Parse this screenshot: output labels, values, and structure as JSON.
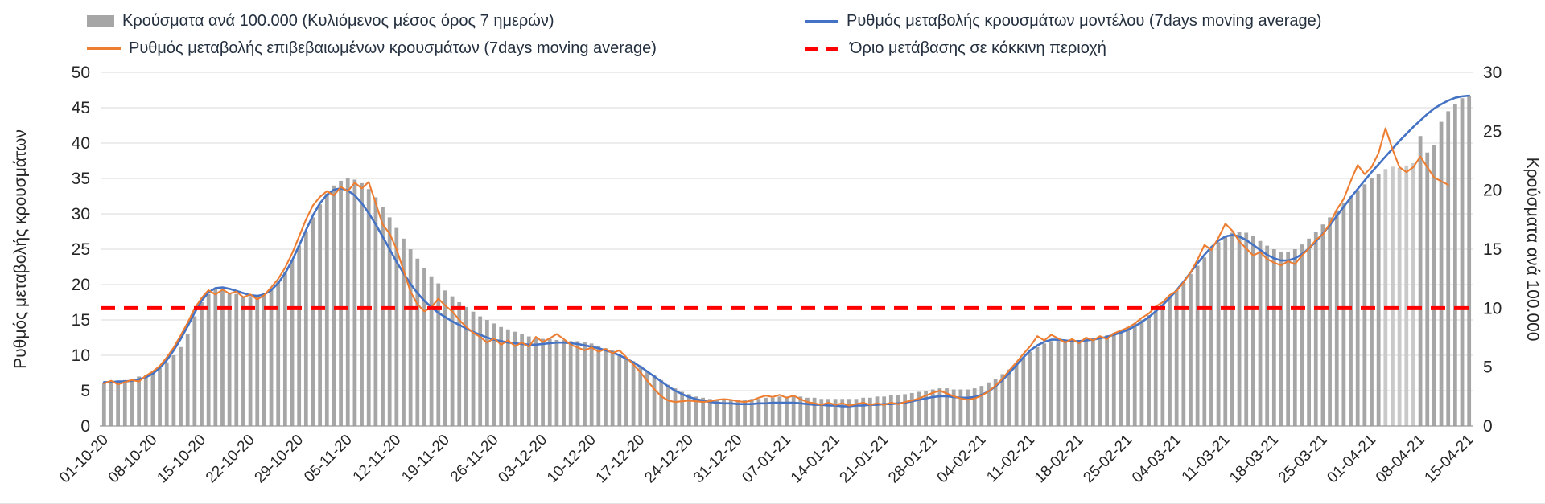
{
  "legend": {
    "bars": "Κρούσματα ανά 100.000 (Κυλιόμενος μέσος όρος 7 ημερών)",
    "model": "Ρυθμός μεταβολής κρουσμάτων μοντέλου (7days moving average)",
    "confirmed": "Ρυθμός μεταβολής επιβεβαιωμένων κρουσμάτων (7days moving average)",
    "threshold": "Όριο μετάβασης σε κόκκινη περιοχή"
  },
  "axes": {
    "left_title": "Ρυθμός μεταβολής κρουσμάτων",
    "right_title": "Κρούσματα ανά 100.000",
    "left_ticks": [
      0,
      5,
      10,
      15,
      20,
      25,
      30,
      35,
      40,
      45,
      50
    ],
    "right_ticks": [
      0,
      5,
      10,
      15,
      20,
      25,
      30
    ]
  },
  "colors": {
    "bar": "#a6a6a6",
    "bar_light": "#c9c9c9",
    "model_line": "#4472c4",
    "confirmed_line": "#ed7d31",
    "threshold": "#ff0000",
    "grid": "#d9d9d9",
    "axis_line": "#9a9a9a",
    "axis_text": "#262626",
    "legend_text": "#24303f"
  },
  "chart_data": {
    "type": "bar+line combo, dual axis",
    "title": "",
    "legend_position": "top",
    "grid": "horizontal",
    "n_points": 197,
    "x_tick_every": 7,
    "x_tick_labels": [
      "01-10-20",
      "08-10-20",
      "15-10-20",
      "22-10-20",
      "29-10-20",
      "05-11-20",
      "12-11-20",
      "19-11-20",
      "26-11-20",
      "03-12-20",
      "10-12-20",
      "17-12-20",
      "24-12-20",
      "31-12-20",
      "07-01-21",
      "14-01-21",
      "21-01-21",
      "28-01-21",
      "04-02-21",
      "11-02-21",
      "18-02-21",
      "25-02-21",
      "04-03-21",
      "11-03-21",
      "18-03-21",
      "25-03-21",
      "01-04-21",
      "08-04-21",
      "15-04-21"
    ],
    "left_axis": {
      "min": 0,
      "max": 50,
      "tick_step": 5,
      "title": "Ρυθμός μεταβολής κρουσμάτων"
    },
    "right_axis": {
      "min": 0,
      "max": 30,
      "tick_step": 5,
      "title": "Κρούσματα ανά 100.000"
    },
    "threshold": {
      "label": "Όριο μετάβασης σε κόκκινη περιοχή",
      "value": 10,
      "axis": "right",
      "left_axis_equivalent": 16.7
    },
    "series": [
      {
        "name": "Κρούσματα ανά 100.000 (Κυλιόμενος μέσος όρος 7 ημερών)",
        "type": "bar",
        "axis": "right",
        "light_indices": [
          184,
          185,
          186,
          187,
          188
        ],
        "values": [
          3.7,
          3.7,
          3.8,
          3.9,
          4.0,
          4.2,
          4.3,
          4.5,
          4.9,
          5.4,
          6.0,
          6.7,
          7.8,
          9.3,
          10.5,
          11.2,
          11.6,
          11.5,
          11.3,
          11.2,
          11.0,
          10.9,
          11.0,
          11.3,
          11.7,
          12.3,
          13.1,
          14.1,
          15.3,
          16.5,
          17.7,
          18.8,
          19.7,
          20.4,
          20.8,
          21.0,
          20.9,
          20.6,
          20.1,
          19.4,
          18.6,
          17.7,
          16.8,
          15.9,
          15.0,
          14.2,
          13.4,
          12.7,
          12.1,
          11.5,
          11.0,
          10.5,
          10.1,
          9.7,
          9.3,
          9.0,
          8.7,
          8.4,
          8.2,
          8.0,
          7.8,
          7.6,
          7.5,
          7.4,
          7.4,
          7.3,
          7.3,
          7.2,
          7.2,
          7.1,
          7.0,
          6.8,
          6.6,
          6.4,
          6.1,
          5.8,
          5.5,
          5.1,
          4.7,
          4.3,
          3.9,
          3.5,
          3.2,
          2.9,
          2.7,
          2.5,
          2.4,
          2.3,
          2.2,
          2.2,
          2.2,
          2.2,
          2.2,
          2.3,
          2.3,
          2.4,
          2.4,
          2.5,
          2.5,
          2.5,
          2.5,
          2.4,
          2.4,
          2.3,
          2.3,
          2.3,
          2.3,
          2.3,
          2.3,
          2.4,
          2.4,
          2.5,
          2.5,
          2.6,
          2.6,
          2.7,
          2.8,
          2.9,
          3.0,
          3.1,
          3.2,
          3.2,
          3.1,
          3.1,
          3.1,
          3.2,
          3.4,
          3.7,
          4.0,
          4.4,
          4.8,
          5.3,
          5.8,
          6.3,
          6.7,
          7.0,
          7.2,
          7.3,
          7.3,
          7.3,
          7.3,
          7.4,
          7.5,
          7.6,
          7.7,
          7.9,
          8.1,
          8.4,
          8.7,
          9.0,
          9.4,
          9.8,
          10.3,
          10.9,
          11.5,
          12.2,
          12.9,
          13.6,
          14.3,
          15.0,
          15.6,
          16.1,
          16.4,
          16.5,
          16.4,
          16.1,
          15.7,
          15.3,
          15.0,
          14.8,
          14.8,
          15.0,
          15.4,
          15.9,
          16.5,
          17.1,
          17.7,
          18.3,
          18.9,
          19.5,
          20.0,
          20.5,
          21.0,
          21.4,
          21.8,
          22.0,
          21.9,
          22.1,
          22.3,
          24.6,
          23.2,
          23.8,
          25.8,
          26.7,
          27.3,
          27.8,
          28.0
        ]
      },
      {
        "name": "Ρυθμός μεταβολής κρουσμάτων μοντέλου (7days moving average)",
        "type": "line",
        "axis": "left",
        "values": [
          6.2,
          6.2,
          6.3,
          6.3,
          6.4,
          6.6,
          6.9,
          7.4,
          8.2,
          9.3,
          10.7,
          12.3,
          14.1,
          16.0,
          17.7,
          18.9,
          19.5,
          19.6,
          19.4,
          19.1,
          18.8,
          18.5,
          18.4,
          18.6,
          19.2,
          20.2,
          21.6,
          23.4,
          25.5,
          27.7,
          29.8,
          31.5,
          32.7,
          33.4,
          33.6,
          33.3,
          32.6,
          31.5,
          30.1,
          28.5,
          26.8,
          25.0,
          23.2,
          21.6,
          20.1,
          18.8,
          17.7,
          16.8,
          16.0,
          15.4,
          14.8,
          14.3,
          13.8,
          13.3,
          12.9,
          12.5,
          12.2,
          12.0,
          11.8,
          11.7,
          11.6,
          11.5,
          11.5,
          11.6,
          11.7,
          11.8,
          11.8,
          11.7,
          11.6,
          11.4,
          11.2,
          11.0,
          10.7,
          10.4,
          10.0,
          9.5,
          9.0,
          8.4,
          7.7,
          7.0,
          6.3,
          5.6,
          5.0,
          4.5,
          4.1,
          3.8,
          3.6,
          3.4,
          3.3,
          3.2,
          3.2,
          3.1,
          3.1,
          3.1,
          3.2,
          3.2,
          3.3,
          3.3,
          3.3,
          3.3,
          3.2,
          3.1,
          3.0,
          3.0,
          2.9,
          2.9,
          2.8,
          2.8,
          2.9,
          2.9,
          3.0,
          3.0,
          3.1,
          3.1,
          3.2,
          3.3,
          3.5,
          3.7,
          3.9,
          4.1,
          4.2,
          4.2,
          4.1,
          4.0,
          4.0,
          4.1,
          4.4,
          4.9,
          5.6,
          6.5,
          7.5,
          8.6,
          9.7,
          10.7,
          11.4,
          11.9,
          12.2,
          12.2,
          12.1,
          12.0,
          12.0,
          12.1,
          12.2,
          12.4,
          12.6,
          12.9,
          13.2,
          13.6,
          14.1,
          14.7,
          15.4,
          16.2,
          17.1,
          18.1,
          19.2,
          20.4,
          21.7,
          23.0,
          24.2,
          25.3,
          26.2,
          26.8,
          27.0,
          26.8,
          26.3,
          25.6,
          24.9,
          24.2,
          23.7,
          23.4,
          23.4,
          23.7,
          24.3,
          25.1,
          26.1,
          27.2,
          28.4,
          29.7,
          31.0,
          32.3,
          33.5,
          34.7,
          35.9,
          37.0,
          38.1,
          39.2,
          40.3,
          41.3,
          42.3,
          43.2,
          44.1,
          44.9,
          45.5,
          46.0,
          46.4,
          46.6,
          46.7
        ]
      },
      {
        "name": "Ρυθμός μεταβολής επιβεβαιωμένων κρουσμάτων (7days moving average)",
        "type": "line",
        "axis": "left",
        "values": [
          6.0,
          6.4,
          5.9,
          6.2,
          6.5,
          6.3,
          7.1,
          7.7,
          8.5,
          9.7,
          11.1,
          12.8,
          14.6,
          16.6,
          18.1,
          19.2,
          18.6,
          19.3,
          18.7,
          19.0,
          18.2,
          18.6,
          17.9,
          18.5,
          19.6,
          20.8,
          22.4,
          24.4,
          26.8,
          29.2,
          31.2,
          32.4,
          33.2,
          32.6,
          33.8,
          33.2,
          34.4,
          33.6,
          34.5,
          31.5,
          28.5,
          27.2,
          25.0,
          22.0,
          19.0,
          17.2,
          16.2,
          16.8,
          18.0,
          17.0,
          16.2,
          15.0,
          14.0,
          13.2,
          12.6,
          11.8,
          12.4,
          11.5,
          12.1,
          11.3,
          11.8,
          11.2,
          12.6,
          11.9,
          12.4,
          13.0,
          12.3,
          11.5,
          11.1,
          10.7,
          11.1,
          10.5,
          10.9,
          10.3,
          10.7,
          9.7,
          8.7,
          7.6,
          6.4,
          5.2,
          4.2,
          3.6,
          3.4,
          3.5,
          3.6,
          3.5,
          3.4,
          3.5,
          3.7,
          3.8,
          3.7,
          3.5,
          3.4,
          3.6,
          4.0,
          4.3,
          4.1,
          4.4,
          4.0,
          4.3,
          3.8,
          3.4,
          3.2,
          3.0,
          3.3,
          3.0,
          3.2,
          2.9,
          3.1,
          3.3,
          3.0,
          3.2,
          3.0,
          3.3,
          3.1,
          3.4,
          3.6,
          3.9,
          4.3,
          4.7,
          5.0,
          4.6,
          4.2,
          3.9,
          3.7,
          3.9,
          4.3,
          4.9,
          5.7,
          6.7,
          7.9,
          9.0,
          10.2,
          11.3,
          12.7,
          12.1,
          12.9,
          12.4,
          11.8,
          12.3,
          11.7,
          12.5,
          12.1,
          12.7,
          12.3,
          13.1,
          13.5,
          13.9,
          14.5,
          15.3,
          15.9,
          16.9,
          17.5,
          18.5,
          19.1,
          20.3,
          21.7,
          23.5,
          25.6,
          24.9,
          26.6,
          28.6,
          27.6,
          26.1,
          25.1,
          24.1,
          24.6,
          23.6,
          23.1,
          22.7,
          23.3,
          22.9,
          24.1,
          25.1,
          26.3,
          27.1,
          28.6,
          30.6,
          32.1,
          34.6,
          36.9,
          35.6,
          36.6,
          38.6,
          42.1,
          39.1,
          36.6,
          35.9,
          36.6,
          38.1,
          36.6,
          35.1,
          34.6,
          34.1,
          null,
          null,
          null
        ]
      }
    ]
  }
}
